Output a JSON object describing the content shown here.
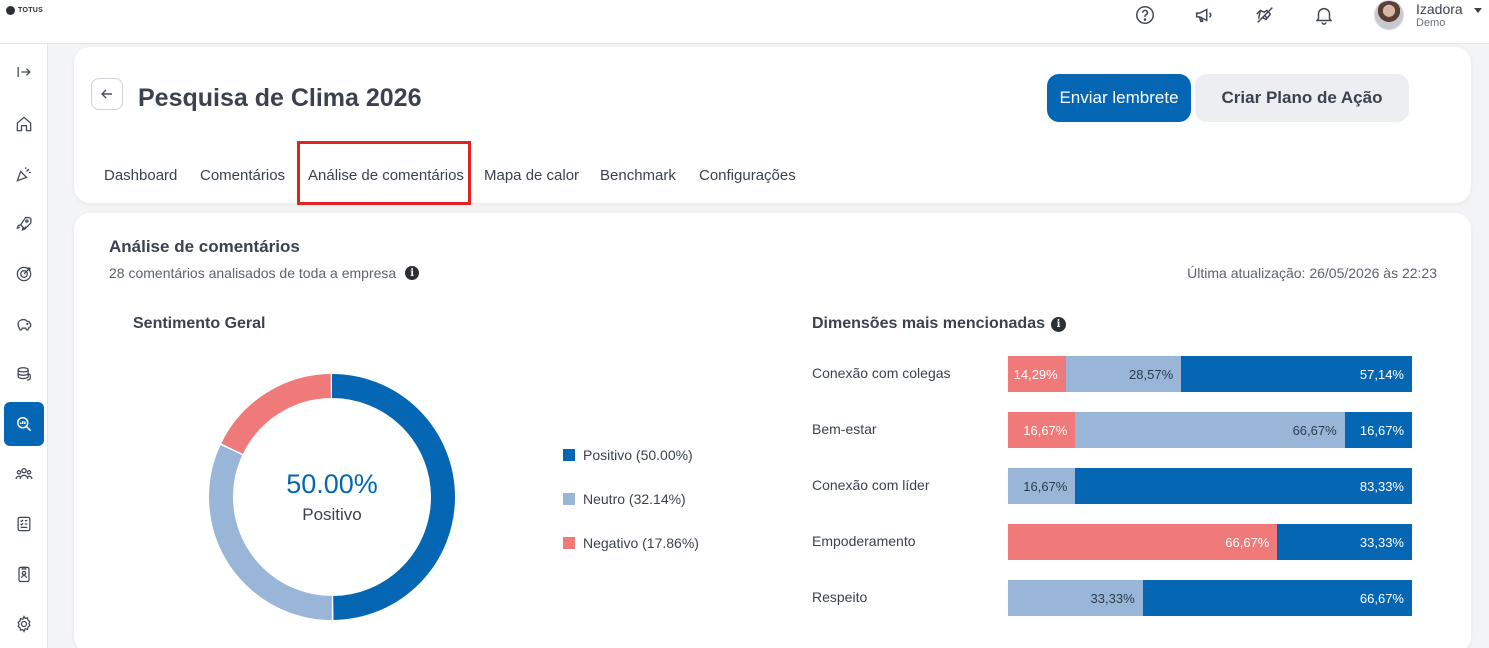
{
  "app": {
    "logo_text": "TOTUS"
  },
  "topbar": {
    "icons": [
      "help-icon",
      "megaphone-icon",
      "handshake-icon",
      "bell-icon"
    ],
    "user_name": "Izadora",
    "user_role": "Demo"
  },
  "sidebar": {
    "items": [
      {
        "icon": "expand-icon"
      },
      {
        "icon": "home-icon"
      },
      {
        "icon": "celebration-icon"
      },
      {
        "icon": "rocket-icon"
      },
      {
        "icon": "target-icon"
      },
      {
        "icon": "piggy-bank-icon"
      },
      {
        "icon": "coins-icon"
      },
      {
        "icon": "search-analytics-icon",
        "active": true
      },
      {
        "icon": "people-icon"
      },
      {
        "icon": "checklist-icon"
      },
      {
        "icon": "badge-icon"
      },
      {
        "icon": "settings-icon"
      }
    ]
  },
  "header": {
    "title": "Pesquisa de Clima 2026",
    "send_reminder": "Enviar lembrete",
    "create_plan": "Criar Plano de Ação",
    "tabs": [
      "Dashboard",
      "Comentários",
      "Análise de comentários",
      "Mapa de calor",
      "Benchmark",
      "Configurações"
    ],
    "active_tab": "Análise de comentários"
  },
  "analysis": {
    "title": "Análise de comentários",
    "subtitle": "28 comentários analisados de toda a empresa",
    "last_update": "Última atualização: 26/05/2026 às 22:23"
  },
  "sentiment": {
    "title": "Sentimento Geral",
    "center_value": "50.00%",
    "center_label": "Positivo",
    "legend": [
      {
        "label": "Positivo (50.00%)",
        "color": "#0567b3"
      },
      {
        "label": "Neutro (32.14%)",
        "color": "#99b6d9"
      },
      {
        "label": "Negativo (17.86%)",
        "color": "#f07a7a"
      }
    ]
  },
  "dimensions": {
    "title": "Dimensões mais mencionadas",
    "rows": [
      {
        "label": "Conexão com colegas",
        "neg": "14,29%",
        "neu": "28,57%",
        "pos": "57,14%"
      },
      {
        "label": "Bem-estar",
        "neg": "16,67%",
        "neu": "66,67%",
        "pos": "16,67%"
      },
      {
        "label": "Conexão com líder",
        "neg": "",
        "neu": "16,67%",
        "pos": "83,33%"
      },
      {
        "label": "Empoderamento",
        "neg": "66,67%",
        "neu": "",
        "pos": "33,33%"
      },
      {
        "label": "Respeito",
        "neg": "",
        "neu": "33,33%",
        "pos": "66,67%"
      }
    ]
  },
  "chart_data": [
    {
      "type": "pie",
      "title": "Sentimento Geral",
      "categories": [
        "Positivo",
        "Neutro",
        "Negativo"
      ],
      "values": [
        50.0,
        32.14,
        17.86
      ],
      "colors": [
        "#0567b3",
        "#99b6d9",
        "#f07a7a"
      ],
      "center_text": "50.00%"
    },
    {
      "type": "bar",
      "title": "Dimensões mais mencionadas",
      "stacked": true,
      "orientation": "horizontal",
      "categories": [
        "Conexão com colegas",
        "Bem-estar",
        "Conexão com líder",
        "Empoderamento",
        "Respeito"
      ],
      "series": [
        {
          "values": [
            14.29,
            16.67,
            0,
            66.67,
            0
          ],
          "color": "#f07a7a"
        },
        {
          "values": [
            28.57,
            66.67,
            16.67,
            0,
            33.33
          ],
          "color": "#99b6d9"
        },
        {
          "values": [
            57.14,
            16.67,
            83.33,
            33.33,
            66.67
          ],
          "color": "#0567b3"
        }
      ]
    }
  ]
}
